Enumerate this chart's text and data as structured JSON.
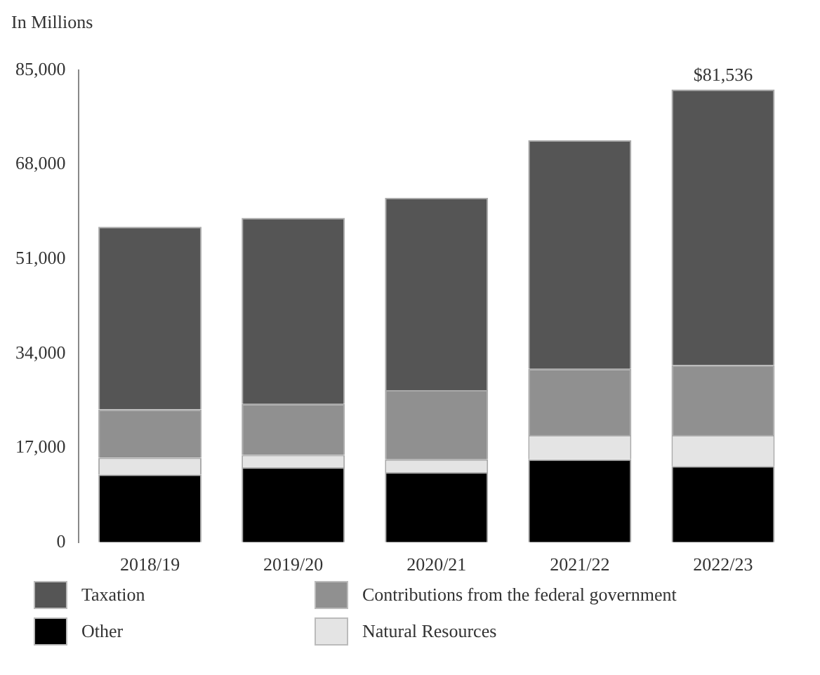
{
  "chart_data": {
    "type": "bar",
    "ylabel": "In Millions",
    "categories": [
      "2018/19",
      "2019/20",
      "2020/21",
      "2021/22",
      "2022/23"
    ],
    "stacked": true,
    "series": [
      {
        "name": "Other",
        "color": "#000000",
        "values": [
          12200,
          13500,
          12600,
          14900,
          13700
        ]
      },
      {
        "name": "Natural Resources",
        "color": "#e4e4e4",
        "values": [
          3000,
          2200,
          2300,
          4400,
          5600
        ]
      },
      {
        "name": "Contributions from the federal government",
        "color": "#909090",
        "values": [
          8700,
          9200,
          12500,
          11900,
          12600
        ]
      },
      {
        "name": "Taxation",
        "color": "#555555",
        "values": [
          32900,
          33500,
          34600,
          41200,
          49636
        ]
      }
    ],
    "totals": [
      null,
      null,
      null,
      null,
      "$81,536"
    ],
    "ylim": [
      0,
      85000
    ],
    "yticks": [
      0,
      {
        "value": 17000,
        "label": "17,000"
      },
      {
        "value": 34000,
        "label": "34,000"
      },
      {
        "value": 51000,
        "label": "51,000"
      },
      {
        "value": 68000,
        "label": "68,000"
      },
      {
        "value": 85000,
        "label": "85,000"
      }
    ],
    "grid": false,
    "legend": "bottom"
  }
}
